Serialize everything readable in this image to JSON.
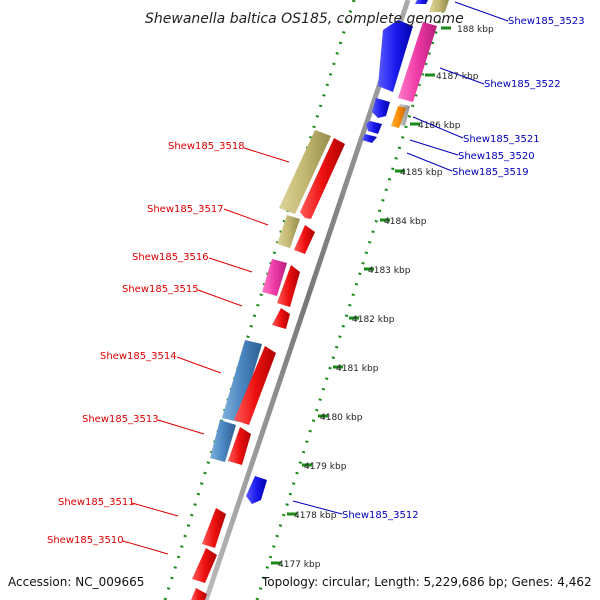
{
  "title": "Shewanella baltica OS185, complete genome",
  "footer": {
    "accession": "Accession: NC_009665",
    "topology": "Topology: circular; Length: 5,229,686 bp; Genes: 4,462"
  },
  "colors": {
    "forward_label": "#dd0000",
    "reverse_label": "#0000bb",
    "backbone": "#888888",
    "tick": "#1a8a1a",
    "red": "#ee1111",
    "blue": "#1a1aee",
    "olive": "#c2b872",
    "pink": "#ee3aa6",
    "steelblue": "#4a86c0",
    "orange": "#ff8c00",
    "grey": "#b9b9b9"
  },
  "ticks": [
    {
      "label": "188 kbp"
    },
    {
      "label": "4187 kbp"
    },
    {
      "label": "4186 kbp"
    },
    {
      "label": "4185 kbp"
    },
    {
      "label": "4184 kbp"
    },
    {
      "label": "4183 kbp"
    },
    {
      "label": "4182 kbp"
    },
    {
      "label": "4181 kbp"
    },
    {
      "label": "4180 kbp"
    },
    {
      "label": "4179 kbp"
    },
    {
      "label": "4178 kbp"
    },
    {
      "label": "4177 kbp"
    }
  ],
  "forward_labels": [
    {
      "text": "Shew185_3518"
    },
    {
      "text": "Shew185_3517"
    },
    {
      "text": "Shew185_3516"
    },
    {
      "text": "Shew185_3515"
    },
    {
      "text": "Shew185_3514"
    },
    {
      "text": "Shew185_3513"
    },
    {
      "text": "Shew185_3511"
    },
    {
      "text": "Shew185_3510"
    }
  ],
  "reverse_labels": [
    {
      "text": "Shew185_3523"
    },
    {
      "text": "Shew185_3522"
    },
    {
      "text": "Shew185_3521"
    },
    {
      "text": "Shew185_3520"
    },
    {
      "text": "Shew185_3519"
    },
    {
      "text": "Shew185_3512"
    }
  ]
}
